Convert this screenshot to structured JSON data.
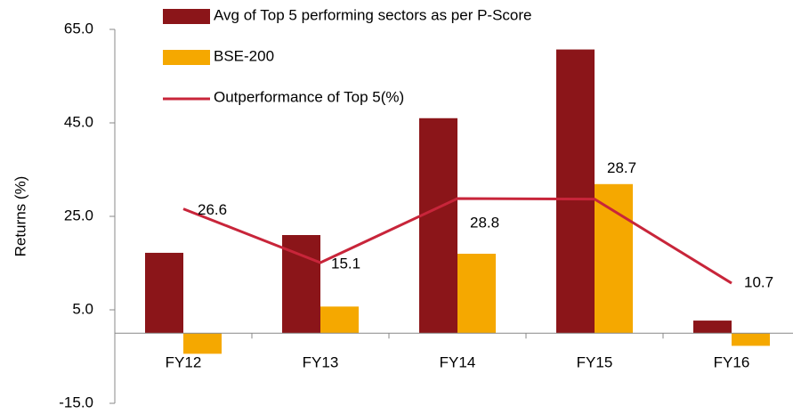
{
  "chart_data": {
    "type": "bar",
    "y_label": "Returns (%)",
    "categories": [
      "FY12",
      "FY13",
      "FY14",
      "FY15",
      "FY16"
    ],
    "series": [
      {
        "name": "Avg of Top 5 performing sectors as per P-Score",
        "color": "#8b1519",
        "type": "bar",
        "values": [
          17.2,
          21.0,
          46.0,
          60.7,
          2.7
        ]
      },
      {
        "name": "BSE-200",
        "color": "#f5a800",
        "type": "bar",
        "values": [
          -4.4,
          5.7,
          17.0,
          31.9,
          -2.7
        ]
      },
      {
        "name": "Outperformance of Top 5(%)",
        "color": "#c8253a",
        "type": "line",
        "values": [
          26.6,
          15.1,
          28.8,
          28.7,
          10.7
        ]
      }
    ],
    "ylim": [
      -15,
      65
    ],
    "yticks": [
      {
        "value": -15,
        "label": "-15.0"
      },
      {
        "value": 5,
        "label": "5.0"
      },
      {
        "value": 25,
        "label": "25.0"
      },
      {
        "value": 45,
        "label": "45.0"
      },
      {
        "value": 65,
        "label": "65.0"
      }
    ]
  }
}
